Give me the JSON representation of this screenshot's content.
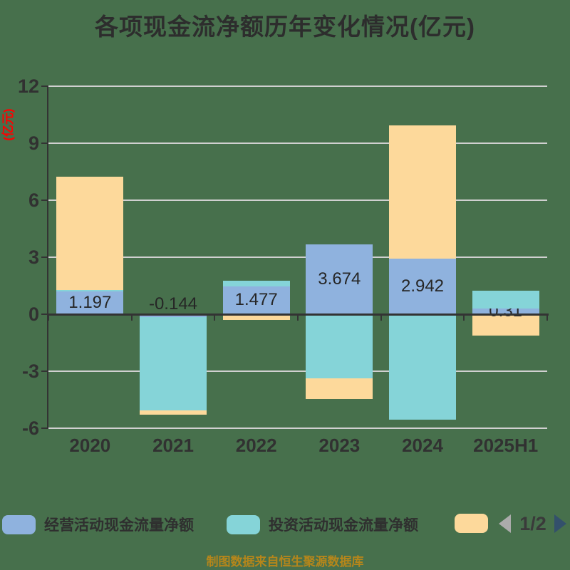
{
  "title": "各项现金流净额历年变化情况(亿元)",
  "y_axis_name": "(亿元)",
  "footer": "制图数据来自恒生聚源数据库",
  "legend": {
    "items": [
      {
        "label": "经营活动现金流量净额",
        "color": "#8FB2DE"
      },
      {
        "label": "投资活动现金流量净额",
        "color": "#85D4D8"
      },
      {
        "label": "",
        "color": "#FDD99B"
      }
    ],
    "pagination": {
      "current": "1/2",
      "prev_color": "#ABABAB",
      "next_color": "#33506B"
    }
  },
  "colors": {
    "background": "#47704C",
    "grid": "#D0D0D0",
    "axis": "#333333",
    "text": "#2D2D2D",
    "axis_name_red": "#FF0000",
    "footer_gold": "#B5861B"
  },
  "chart_data": {
    "type": "bar",
    "stacked": true,
    "title": "各项现金流净额历年变化情况(亿元)",
    "ylabel": "(亿元)",
    "ylim": [
      -6,
      12
    ],
    "yticks": [
      12,
      9,
      6,
      3,
      0,
      -3,
      -6
    ],
    "grid": true,
    "legend_position": "bottom",
    "categories": [
      "2020",
      "2021",
      "2022",
      "2023",
      "2024",
      "2025H1"
    ],
    "series": [
      {
        "name": "经营活动现金流量净额",
        "color": "#8FB2DE",
        "values": [
          1.197,
          -0.144,
          1.477,
          3.674,
          2.942,
          0.31
        ]
      },
      {
        "name": "投资活动现金流量净额",
        "color": "#85D4D8",
        "values": [
          0.08,
          -4.92,
          0.27,
          -3.37,
          -5.55,
          0.92
        ]
      },
      {
        "name": "",
        "color": "#FDD99B",
        "values": [
          5.95,
          -0.23,
          -0.3,
          -1.08,
          7.02,
          -1.13
        ]
      }
    ],
    "data_labels": [
      "1.197",
      "-0.144",
      "1.477",
      "3.674",
      "2.942",
      "0.31"
    ]
  }
}
